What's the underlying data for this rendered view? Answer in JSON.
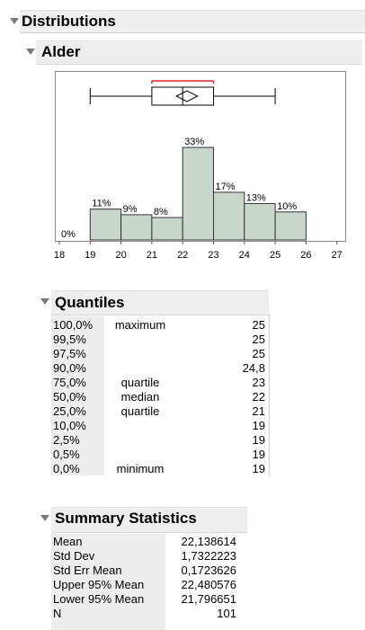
{
  "report": {
    "title": "Distributions",
    "variable": "Alder"
  },
  "colors": {
    "bar_fill": "#c9d6cb",
    "bar_stroke": "#333333",
    "header_bg": "#eeeeee",
    "mean_bracket": "#d62728"
  },
  "chart_data": {
    "type": "bar",
    "subtype": "histogram",
    "bins": [
      [
        18,
        19
      ],
      [
        19,
        20
      ],
      [
        20,
        21
      ],
      [
        21,
        22
      ],
      [
        22,
        23
      ],
      [
        23,
        24
      ],
      [
        24,
        25
      ],
      [
        25,
        26
      ],
      [
        26,
        27
      ]
    ],
    "values": [
      0,
      11,
      9,
      8,
      33,
      17,
      13,
      10,
      null
    ],
    "bar_labels": [
      "0%",
      "11%",
      "9%",
      "8%",
      "33%",
      "17%",
      "13%",
      "10%",
      ""
    ],
    "x_ticks": [
      "18",
      "19",
      "20",
      "21",
      "22",
      "23",
      "24",
      "25",
      "26",
      "27"
    ],
    "xlim": [
      18,
      27
    ],
    "ylim": [
      0,
      36
    ],
    "grid": false,
    "outlier_box": {
      "whisker_low": 19,
      "q1": 21,
      "median": 22,
      "q3": 23,
      "whisker_high": 25,
      "mean": 22.138614,
      "ci_low": 21.796651,
      "ci_high": 22.480576,
      "shortest_half": [
        21,
        23
      ]
    }
  },
  "quantiles": {
    "title": "Quantiles",
    "rows": [
      {
        "pct": "100,0%",
        "label": "maximum",
        "value": "25"
      },
      {
        "pct": "99,5%",
        "label": "",
        "value": "25"
      },
      {
        "pct": "97,5%",
        "label": "",
        "value": "25"
      },
      {
        "pct": "90,0%",
        "label": "",
        "value": "24,8"
      },
      {
        "pct": "75,0%",
        "label": "quartile",
        "value": "23"
      },
      {
        "pct": "50,0%",
        "label": "median",
        "value": "22"
      },
      {
        "pct": "25,0%",
        "label": "quartile",
        "value": "21"
      },
      {
        "pct": "10,0%",
        "label": "",
        "value": "19"
      },
      {
        "pct": "2,5%",
        "label": "",
        "value": "19"
      },
      {
        "pct": "0,5%",
        "label": "",
        "value": "19"
      },
      {
        "pct": "0,0%",
        "label": "minimum",
        "value": "19"
      }
    ]
  },
  "summary": {
    "title": "Summary Statistics",
    "rows": [
      {
        "label": "Mean",
        "value": "22,138614"
      },
      {
        "label": "Std Dev",
        "value": "1,7322223"
      },
      {
        "label": "Std Err Mean",
        "value": "0,1723626"
      },
      {
        "label": "Upper 95% Mean",
        "value": "22,480576"
      },
      {
        "label": "Lower 95% Mean",
        "value": "21,796651"
      },
      {
        "label": "N",
        "value": "101"
      }
    ]
  }
}
